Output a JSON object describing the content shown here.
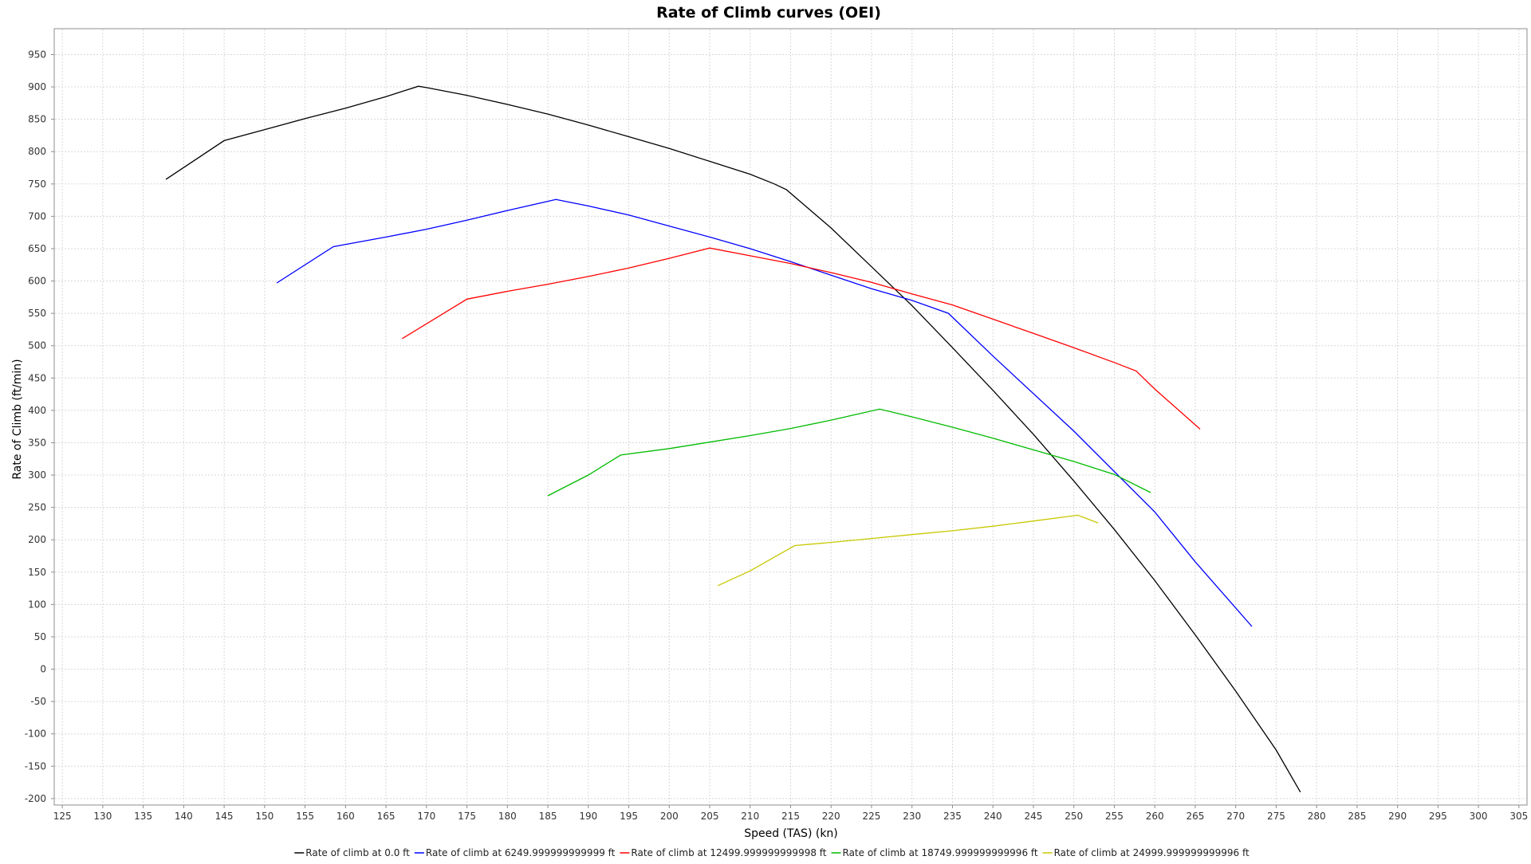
{
  "chart_data": {
    "type": "line",
    "title": "Rate of Climb curves (OEI)",
    "xlabel": "Speed (TAS) (kn)",
    "ylabel": "Rate of Climb (ft/min)",
    "xlim": [
      124,
      306
    ],
    "ylim": [
      -210,
      990
    ],
    "xticks": [
      125,
      130,
      135,
      140,
      145,
      150,
      155,
      160,
      165,
      170,
      175,
      180,
      185,
      190,
      195,
      200,
      205,
      210,
      215,
      220,
      225,
      230,
      235,
      240,
      245,
      250,
      255,
      260,
      265,
      270,
      275,
      280,
      285,
      290,
      295,
      300,
      305
    ],
    "yticks": [
      -200,
      -150,
      -100,
      -50,
      0,
      50,
      100,
      150,
      200,
      250,
      300,
      350,
      400,
      450,
      500,
      550,
      600,
      650,
      700,
      750,
      800,
      850,
      900,
      950
    ],
    "grid": true,
    "legend_position": "bottom",
    "series": [
      {
        "name": "Rate of climb at 0.0 ft",
        "color": "#000000",
        "x": [
          137.8,
          145,
          150,
          155,
          160,
          165,
          169,
          170,
          175,
          180,
          185,
          190,
          195,
          200,
          205,
          210,
          213,
          214.5,
          220,
          225,
          230,
          235,
          240,
          245,
          250,
          255,
          260,
          265,
          270,
          275,
          278
        ],
        "y": [
          757,
          817,
          834,
          851,
          867,
          885,
          901,
          899,
          887,
          873,
          858,
          841,
          823,
          805,
          785,
          765,
          750,
          741,
          682,
          622,
          562,
          497,
          431,
          363,
          291,
          216,
          137,
          53,
          -34,
          -125,
          -190
        ]
      },
      {
        "name": "Rate of climb at 6249.999999999999 ft",
        "color": "#0000ff",
        "x": [
          151.5,
          158.5,
          165,
          170,
          175,
          180,
          186,
          190,
          195,
          200,
          205,
          210,
          215,
          220,
          225,
          230,
          234.5,
          240,
          250,
          260,
          265,
          272
        ],
        "y": [
          597,
          653,
          668,
          680,
          694,
          709,
          726,
          716,
          702,
          685,
          668,
          650,
          630,
          609,
          588,
          570,
          550,
          484,
          368,
          243,
          166,
          66
        ]
      },
      {
        "name": "Rate of climb at 12499.999999999998 ft",
        "color": "#ff0000",
        "x": [
          167,
          175,
          180,
          185,
          190,
          195,
          200,
          205,
          210,
          215,
          220,
          225,
          230,
          235,
          240,
          245,
          250,
          255,
          257.7,
          260,
          265.6
        ],
        "y": [
          511,
          572,
          584,
          595,
          607,
          620,
          635,
          651,
          639,
          627,
          613,
          598,
          580,
          563,
          541,
          519,
          497,
          474,
          461,
          433,
          371
        ]
      },
      {
        "name": "Rate of climb at 18749.999999999996 ft",
        "color": "#00bb00",
        "x": [
          185,
          190,
          194,
          200,
          205,
          210,
          215,
          220,
          226,
          230,
          235,
          240,
          245,
          250,
          255,
          259.5
        ],
        "y": [
          268,
          300,
          331,
          341,
          351,
          361,
          372,
          385,
          402,
          390,
          374,
          357,
          339,
          321,
          301,
          273
        ]
      },
      {
        "name": "Rate of climb at 24999.999999999996 ft",
        "color": "#c8c800",
        "x": [
          206,
          210,
          215.5,
          220,
          225,
          230,
          235,
          240,
          245,
          250.5,
          253
        ],
        "y": [
          129,
          152,
          191,
          196,
          202,
          208,
          214,
          221,
          229,
          238,
          226
        ]
      }
    ]
  }
}
